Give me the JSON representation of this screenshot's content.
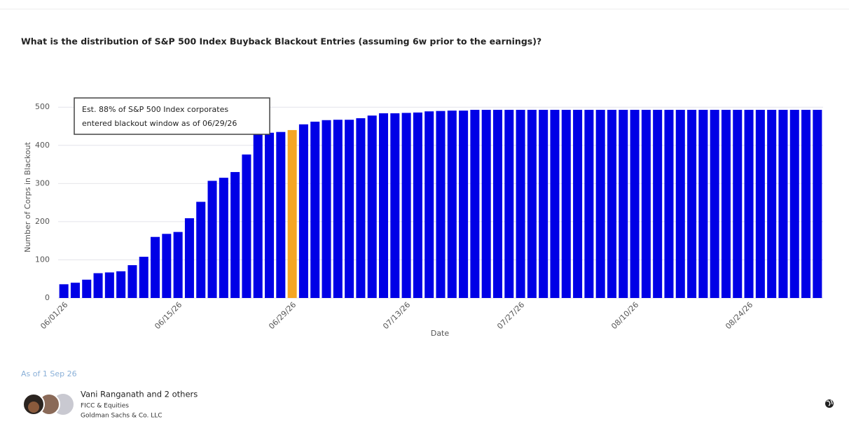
{
  "chart_data": {
    "type": "bar",
    "title": "What is the distribution of S&P 500 Index Buyback Blackout Entries (assuming 6w prior to the earnings)?",
    "x_label": "Date",
    "y_label": "Number of Corps in Blackout",
    "annotation": [
      "Est. 88% of S&P 500 Index corporates",
      "entered blackout window as of 06/29/26"
    ],
    "categories": [
      "06/01/26",
      null,
      null,
      null,
      null,
      null,
      null,
      null,
      null,
      null,
      "06/15/26",
      null,
      null,
      null,
      null,
      null,
      null,
      null,
      null,
      null,
      "06/29/26",
      null,
      null,
      null,
      null,
      null,
      null,
      null,
      null,
      null,
      "07/13/26",
      null,
      null,
      null,
      null,
      null,
      null,
      null,
      null,
      null,
      "07/27/26",
      null,
      null,
      null,
      null,
      null,
      null,
      null,
      null,
      null,
      "08/10/26",
      null,
      null,
      null,
      null,
      null,
      null,
      null,
      null,
      null,
      "08/24/26",
      null,
      null,
      null,
      null,
      null,
      null
    ],
    "values": [
      36,
      40,
      48,
      65,
      67,
      70,
      86,
      108,
      160,
      168,
      173,
      209,
      252,
      307,
      315,
      330,
      376,
      430,
      433,
      435,
      440,
      455,
      462,
      466,
      467,
      467,
      471,
      478,
      484,
      484,
      485,
      486,
      489,
      490,
      491,
      491,
      493,
      493,
      493,
      493,
      493,
      493,
      493,
      493,
      493,
      493,
      493,
      493,
      493,
      493,
      493,
      493,
      493,
      493,
      493,
      493,
      493,
      493,
      493,
      493,
      493,
      493,
      493,
      493,
      493,
      493,
      493
    ],
    "colors": [
      "#0000e6",
      "#0000e6",
      "#0000e6",
      "#0000e6",
      "#0000e6",
      "#0000e6",
      "#0000e6",
      "#0000e6",
      "#0000e6",
      "#0000e6",
      "#0000e6",
      "#0000e6",
      "#0000e6",
      "#0000e6",
      "#0000e6",
      "#0000e6",
      "#0000e6",
      "#0000e6",
      "#0000e6",
      "#0000e6",
      "#f5a623",
      "#0000e6",
      "#0000e6",
      "#0000e6",
      "#0000e6",
      "#0000e6",
      "#0000e6",
      "#0000e6",
      "#0000e6",
      "#0000e6",
      "#0000e6",
      "#0000e6",
      "#0000e6",
      "#0000e6",
      "#0000e6",
      "#0000e6",
      "#0000e6",
      "#0000e6",
      "#0000e6",
      "#0000e6",
      "#0000e6",
      "#0000e6",
      "#0000e6",
      "#0000e6",
      "#0000e6",
      "#0000e6",
      "#0000e6",
      "#0000e6",
      "#0000e6",
      "#0000e6",
      "#0000e6",
      "#0000e6",
      "#0000e6",
      "#0000e6",
      "#0000e6",
      "#0000e6",
      "#0000e6",
      "#0000e6",
      "#0000e6",
      "#0000e6",
      "#0000e6",
      "#0000e6",
      "#0000e6",
      "#0000e6",
      "#0000e6",
      "#0000e6",
      "#0000e6"
    ],
    "ylim": [
      0,
      515
    ],
    "yticks": [
      0,
      100,
      200,
      300,
      400,
      500
    ],
    "grid": true
  },
  "footer": {
    "as_of": "As of 1 Sep 26",
    "authors": "Vani Ranganath and 2 others",
    "team": "FICC & Equities",
    "firm": "Goldman Sachs & Co. LLC"
  }
}
